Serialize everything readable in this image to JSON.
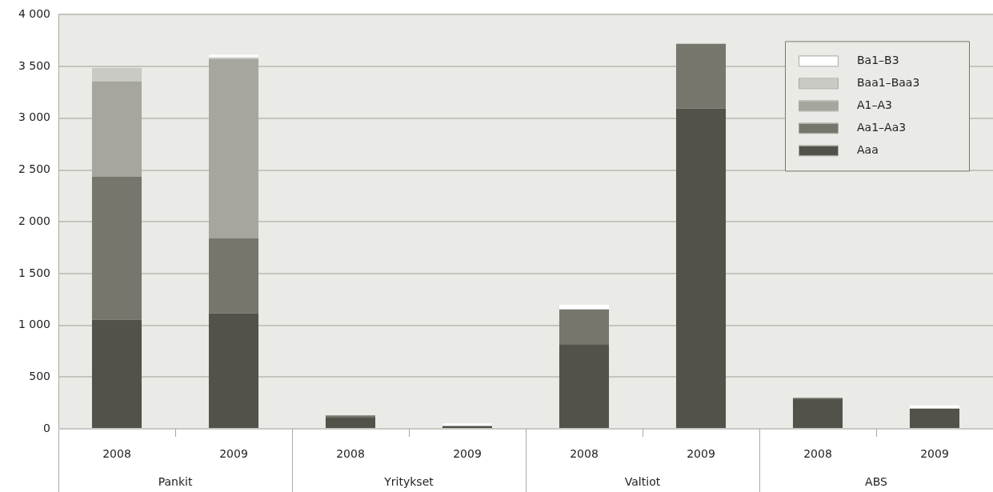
{
  "chart_data": {
    "type": "bar",
    "stacked": true,
    "categories": [
      "2008",
      "2009",
      "2008",
      "2009",
      "2008",
      "2009",
      "2008",
      "2009"
    ],
    "annotations": [
      "Pankit",
      "Yritykset",
      "Valtiot",
      "ABS"
    ],
    "series": [
      {
        "name": "Aaa",
        "color": "#52524a",
        "values": [
          1055,
          1117,
          108,
          28,
          818,
          3093,
          286,
          195
        ]
      },
      {
        "name": "Aa1–Aa3",
        "color": "#76766c",
        "values": [
          1382,
          723,
          21,
          0,
          335,
          627,
          13,
          0
        ]
      },
      {
        "name": "A1–A3",
        "color": "#a6a69e",
        "values": [
          919,
          1732,
          0,
          0,
          0,
          null,
          0,
          0
        ]
      },
      {
        "name": "Baa1–Baa3",
        "color": "#c9cac3",
        "values": [
          131,
          15,
          0,
          0,
          0,
          0,
          0,
          0
        ]
      },
      {
        "name": "Ba1–B3",
        "color": "#ffffff",
        "values": [
          0,
          25,
          0,
          24,
          44,
          0,
          0,
          31
        ]
      }
    ],
    "ylim": [
      0,
      4000
    ],
    "yticks": [
      0,
      500,
      {
        "value": 1000,
        "label": "1 000"
      },
      {
        "value": 1500,
        "label": "1 500"
      },
      {
        "value": 2000,
        "label": "2 000"
      },
      {
        "value": 2500,
        "label": "2 500"
      },
      {
        "value": 3000,
        "label": "3 000"
      },
      {
        "value": 3500,
        "label": "3 500"
      },
      {
        "value": 4000,
        "label": "4 000"
      }
    ],
    "grid": "y",
    "legend": "top right"
  }
}
